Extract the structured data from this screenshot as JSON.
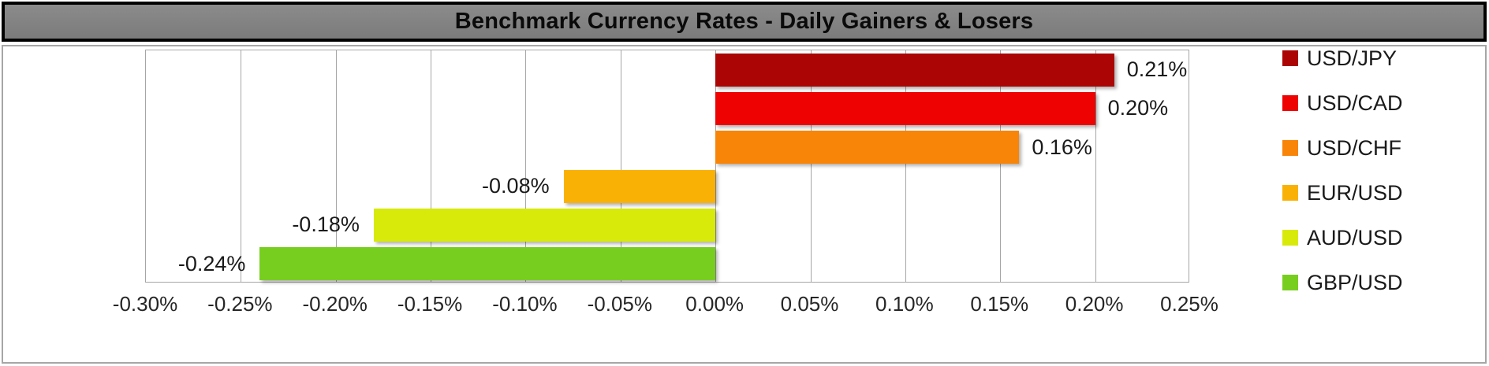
{
  "title": "Benchmark Currency Rates - Daily Gainers & Losers",
  "colors": {
    "title_bg": "#828282",
    "title_border": "#000000",
    "title_text": "#0a0a0a",
    "panel_border": "#a6a6a6",
    "gridline": "#a6a6a6",
    "axis_text": "#262626",
    "label_text": "#1a1a1a"
  },
  "chart_data": {
    "type": "bar",
    "orientation": "horizontal",
    "title": "Benchmark Currency Rates - Daily Gainers & Losers",
    "categories": [
      "USD/JPY",
      "USD/CAD",
      "USD/CHF",
      "EUR/USD",
      "AUD/USD",
      "GBP/USD"
    ],
    "values": [
      0.21,
      0.2,
      0.16,
      -0.08,
      -0.18,
      -0.24
    ],
    "value_labels": [
      "0.21%",
      "0.20%",
      "0.16%",
      "-0.08%",
      "-0.18%",
      "-0.24%"
    ],
    "bar_colors": [
      "#ab0505",
      "#ee0202",
      "#f88408",
      "#fab105",
      "#d7ea09",
      "#77ce1f"
    ],
    "xlim": [
      -0.3,
      0.25
    ],
    "x_tick_step": 0.05,
    "x_tick_labels": [
      "-0.30%",
      "-0.25%",
      "-0.20%",
      "-0.15%",
      "-0.10%",
      "-0.05%",
      "0.00%",
      "0.05%",
      "0.10%",
      "0.15%",
      "0.20%",
      "0.25%"
    ],
    "grid": true,
    "legend_position": "right",
    "legend": [
      {
        "label": "USD/JPY",
        "color": "#ab0505"
      },
      {
        "label": "USD/CAD",
        "color": "#ee0202"
      },
      {
        "label": "USD/CHF",
        "color": "#f88408"
      },
      {
        "label": "EUR/USD",
        "color": "#fab105"
      },
      {
        "label": "AUD/USD",
        "color": "#d7ea09"
      },
      {
        "label": "GBP/USD",
        "color": "#77ce1f"
      }
    ]
  }
}
